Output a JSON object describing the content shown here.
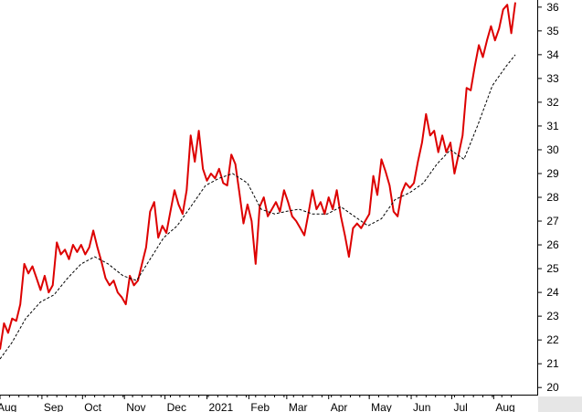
{
  "chart_data": {
    "type": "line",
    "title": "",
    "xlabel": "",
    "ylabel": "",
    "ylim": [
      19.7,
      36.3
    ],
    "xlim": [
      "2020-08-01",
      "2021-08-19"
    ],
    "y_ticks": [
      20,
      21,
      22,
      23,
      24,
      25,
      26,
      27,
      28,
      29,
      30,
      31,
      32,
      33,
      34,
      35,
      36
    ],
    "x_ticks": [
      {
        "label": "Aug",
        "date": "2020-08-01"
      },
      {
        "label": "Sep",
        "date": "2020-09-01"
      },
      {
        "label": "Oct",
        "date": "2020-10-01"
      },
      {
        "label": "Nov",
        "date": "2020-11-01"
      },
      {
        "label": "Dec",
        "date": "2020-12-01"
      },
      {
        "label": "2021",
        "date": "2021-01-01"
      },
      {
        "label": "Feb",
        "date": "2021-02-01"
      },
      {
        "label": "Mar",
        "date": "2021-03-01"
      },
      {
        "label": "Apr",
        "date": "2021-04-01"
      },
      {
        "label": "May",
        "date": "2021-05-01"
      },
      {
        "label": "Jun",
        "date": "2021-06-01"
      },
      {
        "label": "Jul",
        "date": "2021-07-01"
      },
      {
        "label": "Aug",
        "date": "2021-08-01"
      }
    ],
    "grid": false,
    "y_axis_position": "right",
    "series": [
      {
        "color": "#dd0000",
        "style": "solid",
        "points": [
          [
            "2020-08-01",
            21.6
          ],
          [
            "2020-08-04",
            22.7
          ],
          [
            "2020-08-07",
            22.3
          ],
          [
            "2020-08-10",
            22.9
          ],
          [
            "2020-08-13",
            22.8
          ],
          [
            "2020-08-16",
            23.5
          ],
          [
            "2020-08-19",
            25.2
          ],
          [
            "2020-08-22",
            24.8
          ],
          [
            "2020-08-25",
            25.1
          ],
          [
            "2020-08-28",
            24.6
          ],
          [
            "2020-08-31",
            24.1
          ],
          [
            "2020-09-03",
            24.7
          ],
          [
            "2020-09-06",
            24.0
          ],
          [
            "2020-09-09",
            24.3
          ],
          [
            "2020-09-12",
            26.1
          ],
          [
            "2020-09-15",
            25.6
          ],
          [
            "2020-09-18",
            25.8
          ],
          [
            "2020-09-21",
            25.4
          ],
          [
            "2020-09-24",
            26.0
          ],
          [
            "2020-09-27",
            25.7
          ],
          [
            "2020-09-30",
            26.0
          ],
          [
            "2020-10-03",
            25.6
          ],
          [
            "2020-10-06",
            25.9
          ],
          [
            "2020-10-09",
            26.6
          ],
          [
            "2020-10-12",
            25.9
          ],
          [
            "2020-10-15",
            25.3
          ],
          [
            "2020-10-18",
            24.6
          ],
          [
            "2020-10-21",
            24.3
          ],
          [
            "2020-10-24",
            24.5
          ],
          [
            "2020-10-27",
            24.0
          ],
          [
            "2020-10-30",
            23.8
          ],
          [
            "2020-11-02",
            23.5
          ],
          [
            "2020-11-05",
            24.7
          ],
          [
            "2020-11-08",
            24.3
          ],
          [
            "2020-11-11",
            24.5
          ],
          [
            "2020-11-14",
            25.2
          ],
          [
            "2020-11-17",
            25.9
          ],
          [
            "2020-11-20",
            27.4
          ],
          [
            "2020-11-23",
            27.8
          ],
          [
            "2020-11-26",
            26.3
          ],
          [
            "2020-11-29",
            26.8
          ],
          [
            "2020-12-02",
            26.5
          ],
          [
            "2020-12-05",
            27.4
          ],
          [
            "2020-12-08",
            28.3
          ],
          [
            "2020-12-11",
            27.7
          ],
          [
            "2020-12-14",
            27.3
          ],
          [
            "2020-12-17",
            28.3
          ],
          [
            "2020-12-20",
            30.6
          ],
          [
            "2020-12-23",
            29.5
          ],
          [
            "2020-12-26",
            30.8
          ],
          [
            "2020-12-29",
            29.2
          ],
          [
            "2021-01-01",
            28.7
          ],
          [
            "2021-01-04",
            29.0
          ],
          [
            "2021-01-07",
            28.8
          ],
          [
            "2021-01-10",
            29.2
          ],
          [
            "2021-01-13",
            28.6
          ],
          [
            "2021-01-16",
            28.5
          ],
          [
            "2021-01-19",
            29.8
          ],
          [
            "2021-01-22",
            29.4
          ],
          [
            "2021-01-25",
            28.2
          ],
          [
            "2021-01-28",
            26.9
          ],
          [
            "2021-01-31",
            27.7
          ],
          [
            "2021-02-03",
            27.0
          ],
          [
            "2021-02-06",
            25.2
          ],
          [
            "2021-02-09",
            27.6
          ],
          [
            "2021-02-12",
            28.0
          ],
          [
            "2021-02-15",
            27.2
          ],
          [
            "2021-02-18",
            27.5
          ],
          [
            "2021-02-21",
            27.8
          ],
          [
            "2021-02-24",
            27.4
          ],
          [
            "2021-02-27",
            28.3
          ],
          [
            "2021-03-02",
            27.8
          ],
          [
            "2021-03-05",
            27.2
          ],
          [
            "2021-03-08",
            27.0
          ],
          [
            "2021-03-11",
            26.7
          ],
          [
            "2021-03-14",
            26.4
          ],
          [
            "2021-03-17",
            27.3
          ],
          [
            "2021-03-20",
            28.3
          ],
          [
            "2021-03-23",
            27.5
          ],
          [
            "2021-03-26",
            27.8
          ],
          [
            "2021-03-29",
            27.3
          ],
          [
            "2021-04-01",
            28.0
          ],
          [
            "2021-04-04",
            27.5
          ],
          [
            "2021-04-07",
            28.3
          ],
          [
            "2021-04-10",
            27.2
          ],
          [
            "2021-04-13",
            26.4
          ],
          [
            "2021-04-16",
            25.5
          ],
          [
            "2021-04-19",
            26.7
          ],
          [
            "2021-04-22",
            26.9
          ],
          [
            "2021-04-25",
            26.7
          ],
          [
            "2021-04-28",
            27.0
          ],
          [
            "2021-05-01",
            27.3
          ],
          [
            "2021-05-04",
            28.9
          ],
          [
            "2021-05-07",
            28.1
          ],
          [
            "2021-05-10",
            29.6
          ],
          [
            "2021-05-13",
            29.1
          ],
          [
            "2021-05-16",
            28.5
          ],
          [
            "2021-05-19",
            27.4
          ],
          [
            "2021-05-22",
            27.2
          ],
          [
            "2021-05-25",
            28.2
          ],
          [
            "2021-05-28",
            28.6
          ],
          [
            "2021-05-31",
            28.4
          ],
          [
            "2021-06-03",
            28.6
          ],
          [
            "2021-06-06",
            29.5
          ],
          [
            "2021-06-09",
            30.3
          ],
          [
            "2021-06-12",
            31.5
          ],
          [
            "2021-06-15",
            30.6
          ],
          [
            "2021-06-18",
            30.8
          ],
          [
            "2021-06-21",
            29.9
          ],
          [
            "2021-06-24",
            30.6
          ],
          [
            "2021-06-27",
            29.9
          ],
          [
            "2021-06-30",
            30.3
          ],
          [
            "2021-07-03",
            29.0
          ],
          [
            "2021-07-06",
            29.8
          ],
          [
            "2021-07-09",
            30.6
          ],
          [
            "2021-07-12",
            32.6
          ],
          [
            "2021-07-15",
            32.5
          ],
          [
            "2021-07-18",
            33.5
          ],
          [
            "2021-07-21",
            34.4
          ],
          [
            "2021-07-24",
            33.9
          ],
          [
            "2021-07-27",
            34.6
          ],
          [
            "2021-07-30",
            35.2
          ],
          [
            "2021-08-02",
            34.6
          ],
          [
            "2021-08-05",
            35.1
          ],
          [
            "2021-08-08",
            35.9
          ],
          [
            "2021-08-11",
            36.1
          ],
          [
            "2021-08-14",
            34.9
          ],
          [
            "2021-08-17",
            36.2
          ]
        ]
      },
      {
        "color": "#000000",
        "style": "dashed",
        "points": [
          [
            "2020-08-01",
            21.2
          ],
          [
            "2020-08-10",
            21.9
          ],
          [
            "2020-08-20",
            22.9
          ],
          [
            "2020-08-31",
            23.6
          ],
          [
            "2020-09-10",
            23.9
          ],
          [
            "2020-09-20",
            24.6
          ],
          [
            "2020-09-30",
            25.2
          ],
          [
            "2020-10-10",
            25.5
          ],
          [
            "2020-10-20",
            25.2
          ],
          [
            "2020-10-31",
            24.7
          ],
          [
            "2020-11-10",
            24.5
          ],
          [
            "2020-11-20",
            25.4
          ],
          [
            "2020-11-30",
            26.3
          ],
          [
            "2020-12-10",
            26.8
          ],
          [
            "2020-12-20",
            27.6
          ],
          [
            "2020-12-31",
            28.5
          ],
          [
            "2021-01-10",
            28.8
          ],
          [
            "2021-01-20",
            29.0
          ],
          [
            "2021-01-31",
            28.6
          ],
          [
            "2021-02-10",
            27.5
          ],
          [
            "2021-02-20",
            27.3
          ],
          [
            "2021-02-28",
            27.4
          ],
          [
            "2021-03-10",
            27.5
          ],
          [
            "2021-03-20",
            27.3
          ],
          [
            "2021-03-31",
            27.3
          ],
          [
            "2021-04-10",
            27.6
          ],
          [
            "2021-04-20",
            27.2
          ],
          [
            "2021-04-30",
            26.8
          ],
          [
            "2021-05-10",
            27.1
          ],
          [
            "2021-05-20",
            27.9
          ],
          [
            "2021-05-31",
            28.2
          ],
          [
            "2021-06-10",
            28.6
          ],
          [
            "2021-06-20",
            29.4
          ],
          [
            "2021-06-30",
            30.0
          ],
          [
            "2021-07-10",
            29.6
          ],
          [
            "2021-07-20",
            31.0
          ],
          [
            "2021-07-31",
            32.7
          ],
          [
            "2021-08-10",
            33.5
          ],
          [
            "2021-08-17",
            34.0
          ]
        ]
      }
    ]
  }
}
